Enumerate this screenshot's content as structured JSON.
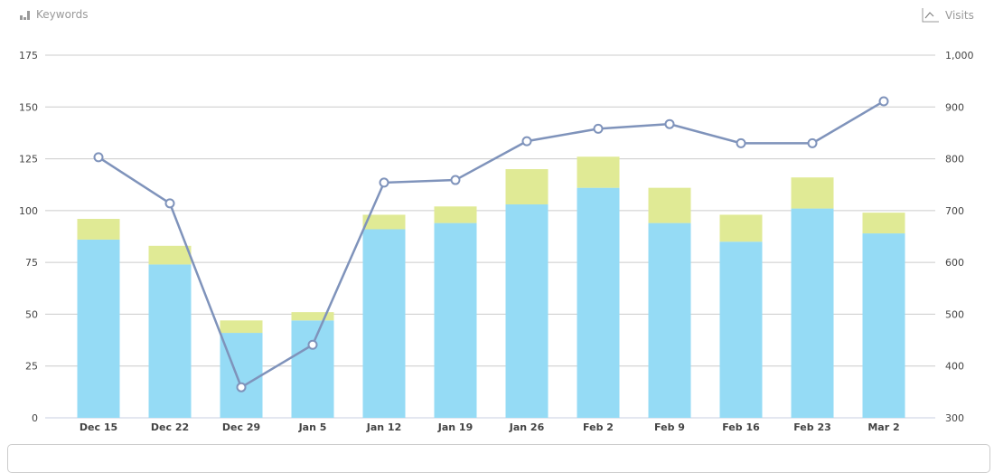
{
  "legend": {
    "left_label": "Keywords",
    "left_icon": "bar-chart-icon",
    "right_label": "Visits",
    "right_icon": "line-chart-icon"
  },
  "chart_data": {
    "type": "bar+line",
    "categories": [
      "Dec 15",
      "Dec 22",
      "Dec 29",
      "Jan 5",
      "Jan 12",
      "Jan 19",
      "Jan 26",
      "Feb 2",
      "Feb 9",
      "Feb 16",
      "Feb 23",
      "Mar 2"
    ],
    "series": [
      {
        "axis": "left",
        "type": "stacked-bar",
        "color": "#95dbf5",
        "values": [
          86,
          74,
          41,
          47,
          91,
          94,
          103,
          111,
          94,
          85,
          101,
          89
        ]
      },
      {
        "axis": "left",
        "type": "stacked-bar",
        "color": "#e0ea95",
        "values": [
          10,
          9,
          6,
          4,
          7,
          8,
          17,
          15,
          17,
          13,
          15,
          10
        ]
      },
      {
        "name": "Visits",
        "axis": "right",
        "type": "line",
        "color": "#7f93bb",
        "values": [
          803,
          714,
          359,
          441,
          754,
          759,
          834,
          858,
          867,
          830,
          830,
          911
        ]
      }
    ],
    "y_left": {
      "min": 0,
      "max": 175,
      "ticks": [
        "0",
        "25",
        "50",
        "75",
        "100",
        "125",
        "150",
        "175"
      ]
    },
    "y_right": {
      "min": 300,
      "max": 1000,
      "ticks": [
        "300",
        "400",
        "500",
        "600",
        "700",
        "800",
        "900",
        "1,000"
      ]
    },
    "grid": true
  }
}
